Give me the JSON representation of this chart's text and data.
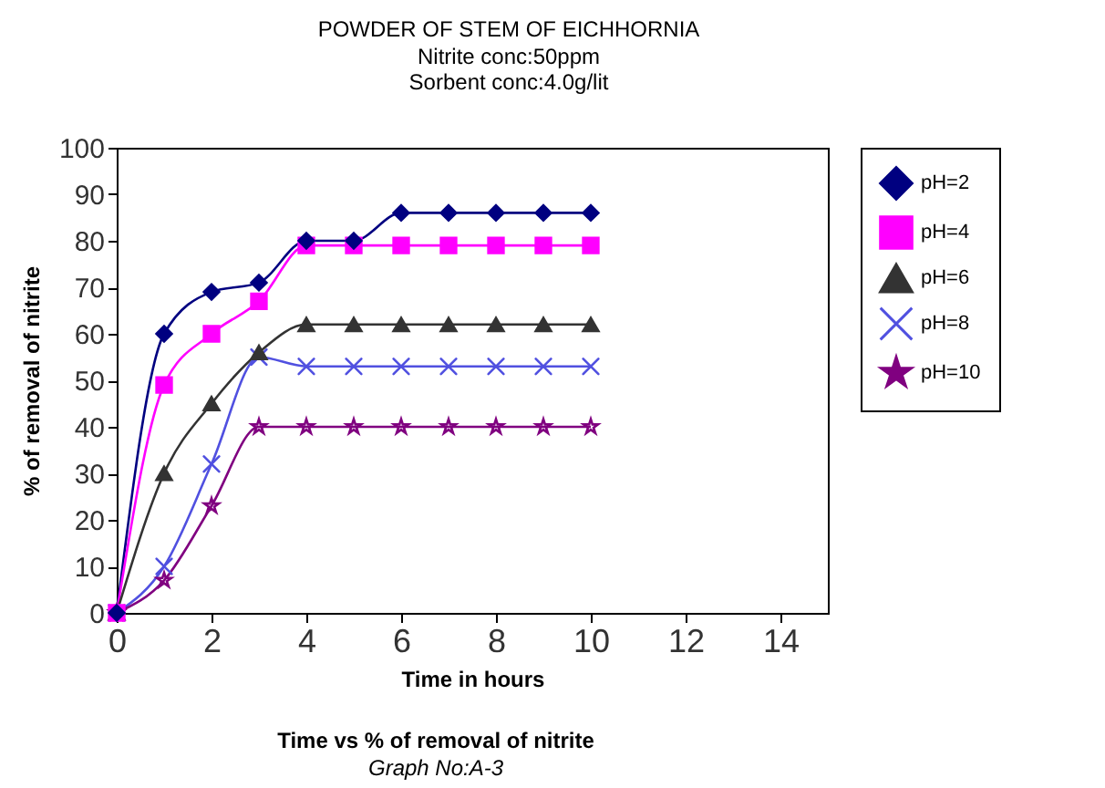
{
  "chart_data": {
    "type": "line",
    "title": "POWDER OF STEM OF EICHHORNIA",
    "subtitle": "Nitrite conc:50ppm\nSorbent conc:4.0g/lit",
    "xlabel": "Time in hours",
    "ylabel": "% of removal of nitrite",
    "annotations": [
      "Time vs % of removal of nitrite",
      "Graph No:A-3"
    ],
    "x": [
      0,
      1,
      2,
      3,
      4,
      5,
      6,
      7,
      8,
      9,
      10
    ],
    "series": [
      {
        "name": "pH=2",
        "color": "#000080",
        "marker": "diamond",
        "values": [
          0,
          60,
          69,
          71,
          80,
          80,
          86,
          86,
          86,
          86,
          86
        ]
      },
      {
        "name": "pH=4",
        "color": "#ff00ff",
        "marker": "square",
        "values": [
          0,
          49,
          60,
          67,
          79,
          79,
          79,
          79,
          79,
          79,
          79
        ]
      },
      {
        "name": "pH=6",
        "color": "#333333",
        "marker": "triangle",
        "values": [
          0,
          30,
          45,
          56,
          62,
          62,
          62,
          62,
          62,
          62,
          62
        ]
      },
      {
        "name": "pH=8",
        "color": "#5050e0",
        "marker": "cross",
        "values": [
          0,
          10,
          32,
          55,
          53,
          53,
          53,
          53,
          53,
          53,
          53
        ]
      },
      {
        "name": "pH=10",
        "color": "#800080",
        "marker": "star",
        "values": [
          0,
          7,
          23,
          40,
          40,
          40,
          40,
          40,
          40,
          40,
          40
        ]
      }
    ],
    "xlim": [
      0,
      15
    ],
    "xticks": [
      0,
      2,
      4,
      6,
      8,
      10,
      12,
      14
    ],
    "ylim": [
      0,
      100
    ],
    "yticks": [
      0,
      10,
      20,
      30,
      40,
      50,
      60,
      70,
      80,
      90,
      100
    ],
    "grid": false,
    "legend": "right",
    "line_style": "solid"
  }
}
